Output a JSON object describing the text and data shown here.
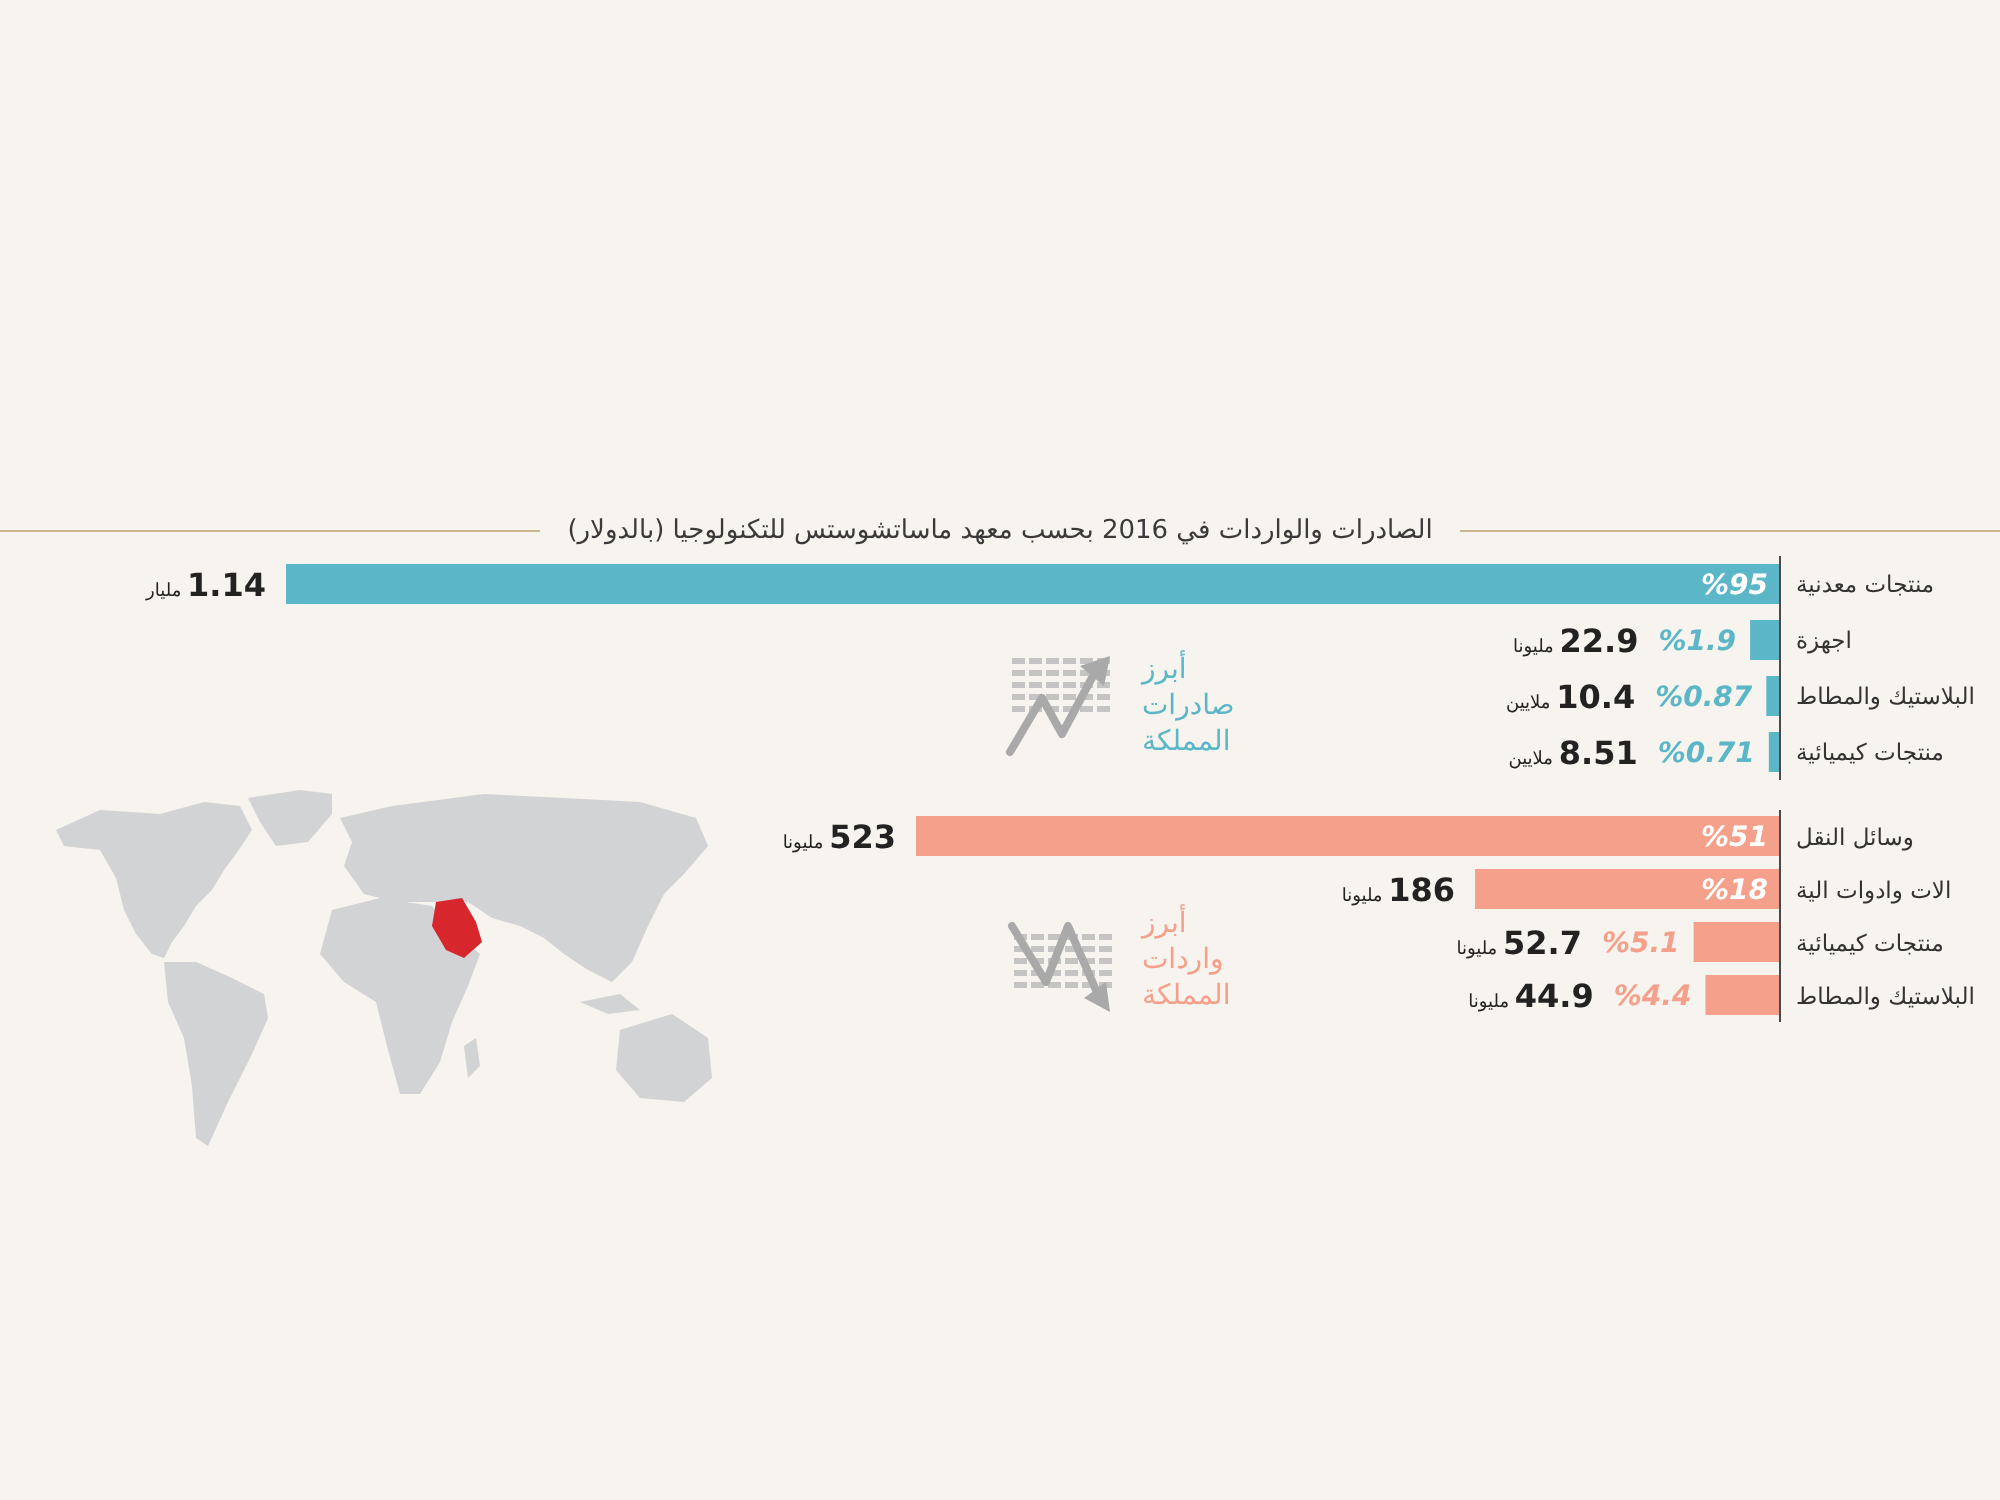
{
  "chart_data": [
    {
      "type": "bar",
      "orientation": "horizontal",
      "title": "الصادرات والواردات في 2016 بحسب معهد ماساتشوستس للتكنولوجيا (بالدولار)",
      "categories": [
        "منتجات معدنية",
        "اجهزة",
        "البلاستيك والمطاط",
        "منتجات كيميائية"
      ],
      "series": [
        {
          "name": "أبرز صادرات المملكة",
          "color": "#5bb7c7",
          "values": [
            95,
            1.9,
            0.87,
            0.71
          ],
          "value_labels": [
            "%95",
            "%1.9",
            "%0.87",
            "%0.71"
          ]
        }
      ],
      "annotations": [
        "1.14 مليار",
        "22.9 مليونا",
        "10.4 ملايين",
        "8.51 ملايين"
      ]
    },
    {
      "type": "bar",
      "orientation": "horizontal",
      "categories": [
        "وسائل النقل",
        "الات وادوات الية",
        "منتجات كيميائية",
        "البلاستيك والمطاط"
      ],
      "series": [
        {
          "name": "أبرز واردات المملكة",
          "color": "#f4a08a",
          "values": [
            51,
            18,
            5.1,
            4.4
          ],
          "value_labels": [
            "%51",
            "%18",
            "%5.1",
            "%4.4"
          ]
        }
      ],
      "annotations": [
        "523 مليونا",
        "186 مليونا",
        "52.7 مليونا",
        "44.9 مليونا"
      ]
    }
  ]
}
